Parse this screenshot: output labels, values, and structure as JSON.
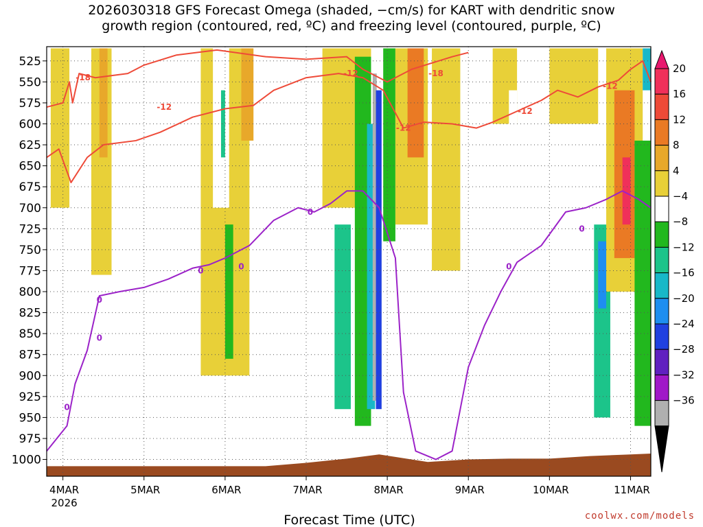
{
  "title_line1": "2026030318 GFS Forecast Omega (shaded, −cm/s) for KART with dendritic snow",
  "title_line2": "growth region (contoured, red, ºC) and freezing level (contoured, purple, ºC)",
  "watermark": "coolwx.com/models",
  "chart_data": {
    "type": "heatmap",
    "title": "2026030318 GFS Forecast Omega (shaded, −cm/s) for KART with dendritic snow growth region (contoured, red, ºC) and freezing level (contoured, purple, ºC)",
    "xlabel": "Forecast Time (UTC)",
    "ylabel": "",
    "x_ticks": [
      {
        "t": 0.0,
        "label": "4MAR"
      },
      {
        "t": 1.0,
        "label": "5MAR"
      },
      {
        "t": 2.0,
        "label": "6MAR"
      },
      {
        "t": 3.0,
        "label": "7MAR"
      },
      {
        "t": 4.0,
        "label": "8MAR"
      },
      {
        "t": 5.0,
        "label": "9MAR"
      },
      {
        "t": 6.0,
        "label": "10MAR"
      },
      {
        "t": 7.0,
        "label": "11MAR"
      }
    ],
    "x_tick_sublabel": "2026",
    "xlim_days_from_4MAR": [
      -0.2,
      7.25
    ],
    "y_ticks": [
      525,
      550,
      575,
      600,
      625,
      650,
      675,
      700,
      725,
      750,
      775,
      800,
      825,
      850,
      875,
      900,
      925,
      950,
      975,
      1000
    ],
    "ylim_hPa": [
      1020,
      508
    ],
    "y_axis_inverted": true,
    "grid": true,
    "colorbar": {
      "levels": [
        "20",
        "16",
        "12",
        "8",
        "4",
        "−4",
        "−8",
        "−12",
        "−16",
        "−20",
        "−24",
        "−28",
        "−32",
        "−36"
      ],
      "colors": [
        "#f0305a",
        "#ee4a38",
        "#ea7a24",
        "#e8a82a",
        "#e8d038",
        "#ffffff",
        "#22b81e",
        "#1cc48a",
        "#18b8c8",
        "#1e8ef0",
        "#2040e0",
        "#6020c0",
        "#a018c8",
        "#b0b0b0",
        "#000000"
      ]
    },
    "shaded_regions": [
      {
        "x": [
          -0.15,
          0.08
        ],
        "p": [
          510,
          700
        ],
        "level": 4
      },
      {
        "x": [
          0.05,
          0.1
        ],
        "p": [
          700,
          770
        ],
        "level": -4
      },
      {
        "x": [
          0.35,
          0.6
        ],
        "p": [
          510,
          780
        ],
        "level": 4
      },
      {
        "x": [
          0.45,
          0.55
        ],
        "p": [
          510,
          640
        ],
        "level": 8
      },
      {
        "x": [
          -0.05,
          0.1
        ],
        "p": [
          920,
          970
        ],
        "level": -4
      },
      {
        "x": [
          1.7,
          2.3
        ],
        "p": [
          510,
          900
        ],
        "level": 4
      },
      {
        "x": [
          1.85,
          2.05
        ],
        "p": [
          510,
          700
        ],
        "level": -4
      },
      {
        "x": [
          1.95,
          2.0
        ],
        "p": [
          560,
          640
        ],
        "level": -12
      },
      {
        "x": [
          2.0,
          2.1
        ],
        "p": [
          720,
          880
        ],
        "level": -8
      },
      {
        "x": [
          2.2,
          2.35
        ],
        "p": [
          510,
          620
        ],
        "level": 8
      },
      {
        "x": [
          3.2,
          3.8
        ],
        "p": [
          510,
          700
        ],
        "level": 4
      },
      {
        "x": [
          3.25,
          3.55
        ],
        "p": [
          700,
          975
        ],
        "level": -4
      },
      {
        "x": [
          3.35,
          3.55
        ],
        "p": [
          720,
          940
        ],
        "level": -12
      },
      {
        "x": [
          3.6,
          3.8
        ],
        "p": [
          520,
          960
        ],
        "level": -8
      },
      {
        "x": [
          3.75,
          3.85
        ],
        "p": [
          600,
          940
        ],
        "level": -16
      },
      {
        "x": [
          3.82,
          3.87
        ],
        "p": [
          540,
          930
        ],
        "level": -36
      },
      {
        "x": [
          3.86,
          3.93
        ],
        "p": [
          560,
          940
        ],
        "level": -24
      },
      {
        "x": [
          3.95,
          4.1
        ],
        "p": [
          510,
          740
        ],
        "level": -8
      },
      {
        "x": [
          4.1,
          4.5
        ],
        "p": [
          510,
          720
        ],
        "level": 4
      },
      {
        "x": [
          4.25,
          4.45
        ],
        "p": [
          510,
          640
        ],
        "level": 12
      },
      {
        "x": [
          4.55,
          4.9
        ],
        "p": [
          510,
          775
        ],
        "level": 4
      },
      {
        "x": [
          5.3,
          5.6
        ],
        "p": [
          510,
          600
        ],
        "level": 4
      },
      {
        "x": [
          5.5,
          5.6
        ],
        "p": [
          560,
          640
        ],
        "level": -4
      },
      {
        "x": [
          6.0,
          6.6
        ],
        "p": [
          510,
          600
        ],
        "level": 4
      },
      {
        "x": [
          5.7,
          6.4
        ],
        "p": [
          850,
          900
        ],
        "level": -4
      },
      {
        "x": [
          6.45,
          6.85
        ],
        "p": [
          700,
          970
        ],
        "level": -4
      },
      {
        "x": [
          6.55,
          6.75
        ],
        "p": [
          720,
          950
        ],
        "level": -12
      },
      {
        "x": [
          6.6,
          6.7
        ],
        "p": [
          740,
          820
        ],
        "level": -20
      },
      {
        "x": [
          6.7,
          7.15
        ],
        "p": [
          510,
          800
        ],
        "level": 4
      },
      {
        "x": [
          6.8,
          7.05
        ],
        "p": [
          560,
          760
        ],
        "level": 12
      },
      {
        "x": [
          6.9,
          7.0
        ],
        "p": [
          640,
          720
        ],
        "level": 20
      },
      {
        "x": [
          7.05,
          7.25
        ],
        "p": [
          620,
          960
        ],
        "level": -8
      },
      {
        "x": [
          7.15,
          7.25
        ],
        "p": [
          510,
          560
        ],
        "level": -16
      }
    ],
    "series": [
      {
        "name": "-18",
        "color": "#ee4a38",
        "label_positions": [
          [
            0.25,
            545
          ],
          [
            4.6,
            540
          ]
        ],
        "points": [
          [
            -0.2,
            580
          ],
          [
            0.0,
            575
          ],
          [
            0.08,
            550
          ],
          [
            0.12,
            575
          ],
          [
            0.2,
            540
          ],
          [
            0.4,
            545
          ],
          [
            0.8,
            540
          ],
          [
            1.0,
            530
          ],
          [
            1.4,
            518
          ],
          [
            1.9,
            512
          ],
          [
            2.5,
            520
          ],
          [
            3.0,
            523
          ],
          [
            3.5,
            520
          ],
          [
            3.7,
            535
          ],
          [
            4.0,
            550
          ],
          [
            4.3,
            535
          ],
          [
            4.8,
            520
          ],
          [
            5.0,
            515
          ]
        ]
      },
      {
        "name": "-12",
        "color": "#ee4a38",
        "label_positions": [
          [
            1.25,
            580
          ],
          [
            3.55,
            540
          ],
          [
            4.2,
            605
          ],
          [
            5.7,
            585
          ],
          [
            6.75,
            555
          ]
        ],
        "points": [
          [
            -0.2,
            640
          ],
          [
            -0.05,
            630
          ],
          [
            0.1,
            670
          ],
          [
            0.3,
            640
          ],
          [
            0.5,
            625
          ],
          [
            0.9,
            620
          ],
          [
            1.2,
            610
          ],
          [
            1.6,
            592
          ],
          [
            2.0,
            582
          ],
          [
            2.35,
            578
          ],
          [
            2.6,
            560
          ],
          [
            3.0,
            545
          ],
          [
            3.4,
            540
          ],
          [
            3.7,
            545
          ],
          [
            3.95,
            560
          ],
          [
            4.2,
            605
          ],
          [
            4.45,
            598
          ],
          [
            4.8,
            600
          ],
          [
            5.1,
            605
          ],
          [
            5.3,
            598
          ],
          [
            5.6,
            585
          ],
          [
            5.9,
            572
          ],
          [
            6.1,
            560
          ],
          [
            6.35,
            568
          ],
          [
            6.6,
            556
          ],
          [
            6.85,
            548
          ],
          [
            7.0,
            535
          ],
          [
            7.15,
            525
          ],
          [
            7.25,
            550
          ]
        ]
      },
      {
        "name": "0",
        "color": "#9b22c8",
        "label_positions": [
          [
            0.45,
            810
          ],
          [
            1.7,
            775
          ],
          [
            2.2,
            770
          ],
          [
            3.05,
            705
          ],
          [
            5.5,
            770
          ],
          [
            6.4,
            725
          ],
          [
            0.45,
            855
          ],
          [
            0.05,
            938
          ]
        ],
        "points": [
          [
            -0.2,
            990
          ],
          [
            0.05,
            960
          ],
          [
            0.15,
            910
          ],
          [
            0.3,
            870
          ],
          [
            0.45,
            805
          ],
          [
            0.7,
            800
          ],
          [
            1.0,
            795
          ],
          [
            1.3,
            785
          ],
          [
            1.6,
            772
          ],
          [
            1.8,
            768
          ],
          [
            2.0,
            760
          ],
          [
            2.3,
            745
          ],
          [
            2.6,
            715
          ],
          [
            2.9,
            700
          ],
          [
            3.1,
            705
          ],
          [
            3.3,
            695
          ],
          [
            3.5,
            680
          ],
          [
            3.7,
            680
          ],
          [
            3.9,
            700
          ],
          [
            4.1,
            760
          ],
          [
            4.2,
            920
          ],
          [
            4.35,
            990
          ],
          [
            4.6,
            1000
          ],
          [
            4.8,
            990
          ],
          [
            5.0,
            890
          ],
          [
            5.2,
            840
          ],
          [
            5.4,
            800
          ],
          [
            5.6,
            765
          ],
          [
            5.9,
            745
          ],
          [
            6.2,
            705
          ],
          [
            6.45,
            700
          ],
          [
            6.7,
            690
          ],
          [
            6.9,
            680
          ],
          [
            7.1,
            690
          ],
          [
            7.25,
            700
          ]
        ]
      }
    ],
    "terrain": {
      "color": "#9a4a20",
      "surface_p": [
        [
          -0.2,
          1008
        ],
        [
          2.5,
          1008
        ],
        [
          3.0,
          1004
        ],
        [
          3.5,
          999
        ],
        [
          3.9,
          994
        ],
        [
          4.1,
          997
        ],
        [
          4.5,
          1003
        ],
        [
          5.0,
          1000
        ],
        [
          5.5,
          999
        ],
        [
          6.0,
          999
        ],
        [
          6.5,
          996
        ],
        [
          7.0,
          994
        ],
        [
          7.25,
          993
        ]
      ]
    }
  }
}
